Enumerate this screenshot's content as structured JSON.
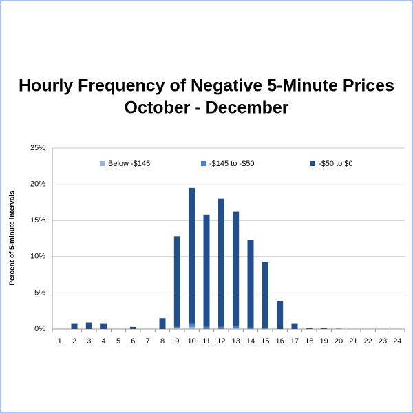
{
  "chart_data": {
    "type": "bar",
    "stacked": true,
    "title": "Hourly Frequency of Negative 5-Minute Prices",
    "subtitle": "October - December",
    "y_label": "Percent of 5-minute intervals",
    "categories": [
      "1",
      "2",
      "3",
      "4",
      "5",
      "6",
      "7",
      "8",
      "9",
      "10",
      "11",
      "12",
      "13",
      "14",
      "15",
      "16",
      "17",
      "18",
      "19",
      "20",
      "21",
      "22",
      "23",
      "24"
    ],
    "series": [
      {
        "name": "Below -$145",
        "color": "#95b3e0",
        "values": [
          0,
          0,
          0,
          0,
          0,
          0,
          0,
          0,
          0.1,
          0.3,
          0,
          0,
          0.1,
          0,
          0,
          0,
          0,
          0,
          0,
          0,
          0,
          0,
          0,
          0
        ]
      },
      {
        "name": "-$145 to -$50",
        "color": "#4f81c7",
        "values": [
          0,
          0,
          0,
          0,
          0,
          0,
          0,
          0,
          0.2,
          0.5,
          0.3,
          0.3,
          0.3,
          0.2,
          0.1,
          0,
          0,
          0,
          0,
          0,
          0,
          0,
          0,
          0
        ]
      },
      {
        "name": "-$50 to $0",
        "color": "#234e8c",
        "values": [
          0,
          0.8,
          0.9,
          0.8,
          0,
          0.3,
          0,
          1.5,
          12.5,
          18.7,
          15.5,
          17.7,
          15.8,
          12.1,
          9.2,
          3.8,
          0.8,
          0.1,
          0.1,
          0.05,
          0,
          0,
          0,
          0
        ]
      }
    ],
    "ylim": [
      0,
      25
    ],
    "yticks": [
      {
        "value": 0,
        "label": "0%"
      },
      {
        "value": 5,
        "label": "5%"
      },
      {
        "value": 10,
        "label": "10%"
      },
      {
        "value": 15,
        "label": "15%"
      },
      {
        "value": 20,
        "label": "20%"
      },
      {
        "value": 25,
        "label": "25%"
      }
    ],
    "grid": true,
    "legend": "top"
  }
}
